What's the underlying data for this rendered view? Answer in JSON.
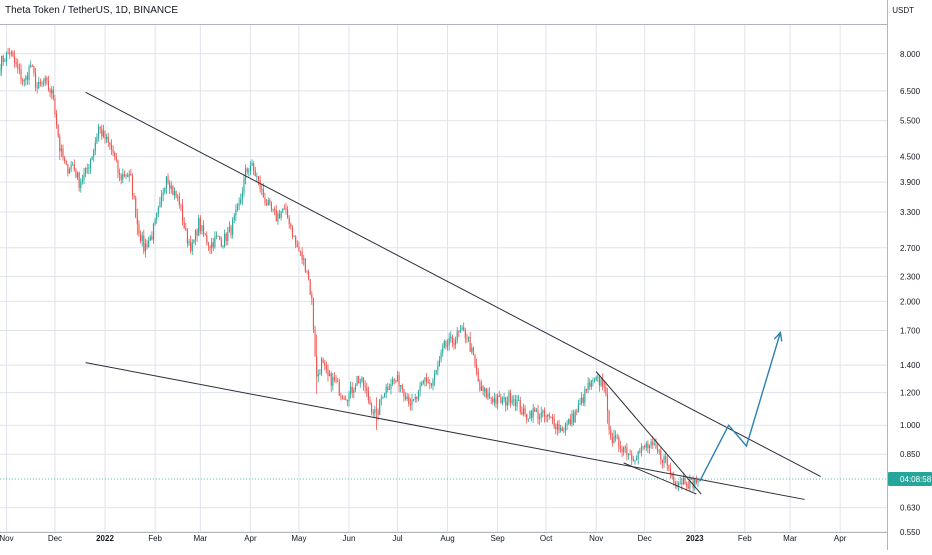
{
  "header": {
    "title": "Theta Token / TetherUS, 1D, BINANCE",
    "unit": "USDT"
  },
  "colors": {
    "up": "#26a69a",
    "down": "#ef5350",
    "trendline": "#2a2e39",
    "projection": "#2a7fb3",
    "price_tag": "#26a69a",
    "grid": "#e0e3eb",
    "background": "#ffffff",
    "axis_bg": "#ffffff"
  },
  "price_tag": {
    "label": "04:08:58"
  },
  "chart_data": {
    "type": "candlestick",
    "scale": "log",
    "ylim": [
      0.55,
      9.4
    ],
    "xlim": [
      "2021-10-28",
      "2023-04-30"
    ],
    "y_ticks": [
      8.0,
      6.5,
      5.5,
      4.5,
      3.9,
      3.3,
      2.7,
      2.3,
      2.0,
      1.7,
      1.4,
      1.2,
      1.0,
      0.85,
      0.63,
      0.55
    ],
    "y_tick_labels": [
      "8.000",
      "6.500",
      "5.500",
      "4.500",
      "3.900",
      "3.300",
      "2.700",
      "2.300",
      "2.000",
      "1.700",
      "1.400",
      "1.200",
      "1.000",
      "0.850",
      "0.630",
      "0.550"
    ],
    "x_ticks": [
      {
        "date": "2021-11-01",
        "label": "Nov",
        "bold": false
      },
      {
        "date": "2021-12-01",
        "label": "Dec",
        "bold": false
      },
      {
        "date": "2022-01-01",
        "label": "2022",
        "bold": true
      },
      {
        "date": "2022-02-01",
        "label": "Feb",
        "bold": false
      },
      {
        "date": "2022-03-01",
        "label": "Mar",
        "bold": false
      },
      {
        "date": "2022-04-01",
        "label": "Apr",
        "bold": false
      },
      {
        "date": "2022-05-01",
        "label": "May",
        "bold": false
      },
      {
        "date": "2022-06-01",
        "label": "Jun",
        "bold": false
      },
      {
        "date": "2022-07-01",
        "label": "Jul",
        "bold": false
      },
      {
        "date": "2022-08-01",
        "label": "Aug",
        "bold": false
      },
      {
        "date": "2022-09-01",
        "label": "Sep",
        "bold": false
      },
      {
        "date": "2022-10-01",
        "label": "Oct",
        "bold": false
      },
      {
        "date": "2022-11-01",
        "label": "Nov",
        "bold": false
      },
      {
        "date": "2022-12-01",
        "label": "Dec",
        "bold": false
      },
      {
        "date": "2023-01-01",
        "label": "2023",
        "bold": true
      },
      {
        "date": "2023-02-01",
        "label": "Feb",
        "bold": false
      },
      {
        "date": "2023-03-01",
        "label": "Mar",
        "bold": false
      },
      {
        "date": "2023-04-01",
        "label": "Apr",
        "bold": false
      }
    ],
    "price_path": [
      [
        "2021-10-28",
        7.6
      ],
      [
        "2021-11-03",
        8.1
      ],
      [
        "2021-11-08",
        7.3
      ],
      [
        "2021-11-12",
        6.8
      ],
      [
        "2021-11-16",
        7.5
      ],
      [
        "2021-11-20",
        6.6
      ],
      [
        "2021-11-25",
        6.8
      ],
      [
        "2021-11-30",
        6.3
      ],
      [
        "2021-12-04",
        4.7
      ],
      [
        "2021-12-08",
        4.2
      ],
      [
        "2021-12-12",
        4.3
      ],
      [
        "2021-12-16",
        3.9
      ],
      [
        "2021-12-20",
        4.1
      ],
      [
        "2021-12-25",
        4.7
      ],
      [
        "2021-12-28",
        5.3
      ],
      [
        "2022-01-02",
        4.9
      ],
      [
        "2022-01-06",
        4.6
      ],
      [
        "2022-01-10",
        4.0
      ],
      [
        "2022-01-14",
        4.1
      ],
      [
        "2022-01-17",
        3.95
      ],
      [
        "2022-01-21",
        3.1
      ],
      [
        "2022-01-25",
        2.7
      ],
      [
        "2022-01-30",
        2.9
      ],
      [
        "2022-02-04",
        3.4
      ],
      [
        "2022-02-08",
        4.1
      ],
      [
        "2022-02-12",
        3.7
      ],
      [
        "2022-02-16",
        3.5
      ],
      [
        "2022-02-20",
        2.9
      ],
      [
        "2022-02-24",
        2.7
      ],
      [
        "2022-02-28",
        3.1
      ],
      [
        "2022-03-03",
        2.9
      ],
      [
        "2022-03-07",
        2.75
      ],
      [
        "2022-03-11",
        2.85
      ],
      [
        "2022-03-15",
        2.8
      ],
      [
        "2022-03-20",
        3.0
      ],
      [
        "2022-03-25",
        3.4
      ],
      [
        "2022-03-29",
        4.1
      ],
      [
        "2022-04-01",
        4.3
      ],
      [
        "2022-04-05",
        4.0
      ],
      [
        "2022-04-09",
        3.6
      ],
      [
        "2022-04-13",
        3.35
      ],
      [
        "2022-04-17",
        3.2
      ],
      [
        "2022-04-21",
        3.35
      ],
      [
        "2022-04-25",
        3.15
      ],
      [
        "2022-04-29",
        2.75
      ],
      [
        "2022-05-03",
        2.55
      ],
      [
        "2022-05-06",
        2.4
      ],
      [
        "2022-05-09",
        2.0
      ],
      [
        "2022-05-12",
        1.3
      ],
      [
        "2022-05-15",
        1.42
      ],
      [
        "2022-05-19",
        1.3
      ],
      [
        "2022-05-23",
        1.28
      ],
      [
        "2022-05-27",
        1.2
      ],
      [
        "2022-06-01",
        1.18
      ],
      [
        "2022-06-06",
        1.3
      ],
      [
        "2022-06-10",
        1.25
      ],
      [
        "2022-06-14",
        1.13
      ],
      [
        "2022-06-18",
        1.05
      ],
      [
        "2022-06-22",
        1.2
      ],
      [
        "2022-06-27",
        1.28
      ],
      [
        "2022-07-02",
        1.28
      ],
      [
        "2022-07-06",
        1.2
      ],
      [
        "2022-07-10",
        1.12
      ],
      [
        "2022-07-14",
        1.18
      ],
      [
        "2022-07-18",
        1.3
      ],
      [
        "2022-07-22",
        1.25
      ],
      [
        "2022-07-26",
        1.38
      ],
      [
        "2022-07-30",
        1.55
      ],
      [
        "2022-08-04",
        1.6
      ],
      [
        "2022-08-09",
        1.68
      ],
      [
        "2022-08-13",
        1.66
      ],
      [
        "2022-08-17",
        1.45
      ],
      [
        "2022-08-21",
        1.22
      ],
      [
        "2022-08-26",
        1.18
      ],
      [
        "2022-08-31",
        1.15
      ],
      [
        "2022-09-05",
        1.14
      ],
      [
        "2022-09-10",
        1.18
      ],
      [
        "2022-09-14",
        1.12
      ],
      [
        "2022-09-18",
        1.05
      ],
      [
        "2022-09-22",
        1.08
      ],
      [
        "2022-09-27",
        1.06
      ],
      [
        "2022-10-02",
        1.04
      ],
      [
        "2022-10-06",
        1.02
      ],
      [
        "2022-10-10",
        0.98
      ],
      [
        "2022-10-14",
        1.0
      ],
      [
        "2022-10-18",
        1.05
      ],
      [
        "2022-10-22",
        1.12
      ],
      [
        "2022-10-27",
        1.24
      ],
      [
        "2022-11-02",
        1.28
      ],
      [
        "2022-11-06",
        1.27
      ],
      [
        "2022-11-08",
        1.05
      ],
      [
        "2022-11-11",
        0.92
      ],
      [
        "2022-11-15",
        0.9
      ],
      [
        "2022-11-19",
        0.88
      ],
      [
        "2022-11-23",
        0.84
      ],
      [
        "2022-11-28",
        0.86
      ],
      [
        "2022-12-02",
        0.89
      ],
      [
        "2022-12-06",
        0.88
      ],
      [
        "2022-12-10",
        0.85
      ],
      [
        "2022-12-14",
        0.82
      ],
      [
        "2022-12-18",
        0.75
      ],
      [
        "2022-12-22",
        0.73
      ],
      [
        "2022-12-26",
        0.74
      ],
      [
        "2022-12-29",
        0.72
      ],
      [
        "2023-01-01",
        0.73
      ],
      [
        "2023-01-03",
        0.74
      ]
    ],
    "price_shock_dates": [
      "2021-12-04",
      "2022-01-21",
      "2022-05-12",
      "2022-06-18",
      "2022-11-08"
    ],
    "trendlines": [
      {
        "from": [
          "2021-12-20",
          6.45
        ],
        "to": [
          "2023-03-20",
          0.75
        ]
      },
      {
        "from": [
          "2021-12-20",
          1.42
        ],
        "to": [
          "2023-03-10",
          0.66
        ]
      },
      {
        "from": [
          "2022-11-01",
          1.35
        ],
        "to": [
          "2023-01-05",
          0.68
        ]
      },
      {
        "from": [
          "2022-11-18",
          0.81
        ],
        "to": [
          "2023-01-02",
          0.68
        ]
      }
    ],
    "projection": [
      [
        "2023-01-04",
        0.73
      ],
      [
        "2023-01-22",
        1.0
      ],
      [
        "2023-02-02",
        0.89
      ],
      [
        "2023-02-23",
        1.68
      ]
    ],
    "last_price": 0.74
  }
}
